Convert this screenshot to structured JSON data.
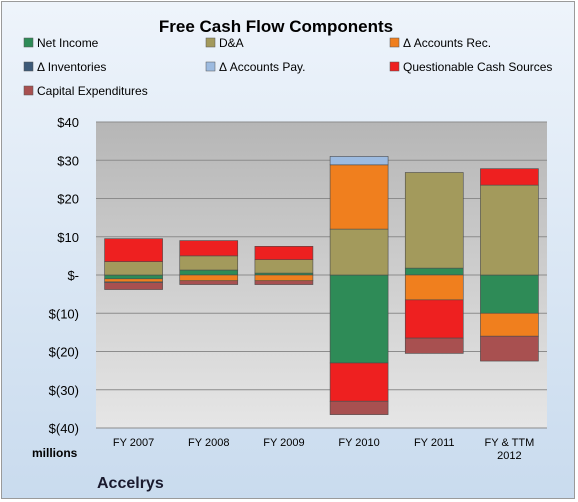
{
  "chart_data": {
    "type": "bar",
    "stacked": true,
    "title": "Free Cash Flow Components",
    "ylabel": "millions",
    "brand": "Accelrys",
    "ylim": [
      -40,
      40
    ],
    "yticks": [
      40,
      30,
      20,
      10,
      0,
      -10,
      -20,
      -30,
      -40
    ],
    "ytick_labels": [
      "$40",
      "$30",
      "$20",
      "$10",
      "$-",
      "$(10)",
      "$(20)",
      "$(30)",
      "$(40)"
    ],
    "categories": [
      [
        "FY 2007"
      ],
      [
        "FY 2008"
      ],
      [
        "FY 2009"
      ],
      [
        "FY 2010"
      ],
      [
        "FY 2011"
      ],
      [
        "FY & TTM",
        "2012"
      ]
    ],
    "series": [
      {
        "name": "Net Income",
        "color": "#2e8b57",
        "values": [
          -1.0,
          1.3,
          0.5,
          -23.0,
          1.8,
          -10.0
        ]
      },
      {
        "name": "D&A",
        "color": "#a39a5c",
        "values": [
          3.5,
          3.7,
          3.5,
          12.0,
          25.0,
          23.5
        ]
      },
      {
        "name": "Δ Accounts Rec.",
        "color": "#f07f1e",
        "values": [
          -0.8,
          -1.5,
          -1.5,
          16.8,
          -6.5,
          -6.0
        ]
      },
      {
        "name": "Δ Inventories",
        "color": "#3d5a78",
        "values": [
          0,
          0,
          0,
          0,
          0,
          0
        ]
      },
      {
        "name": "Δ Accounts Pay.",
        "color": "#9dbbe0",
        "values": [
          -0.2,
          0,
          0,
          2.2,
          0,
          0
        ]
      },
      {
        "name": "Questionable Cash Sources",
        "color": "#ee2020",
        "values": [
          6.0,
          4.0,
          3.5,
          -10.0,
          -10.0,
          4.3
        ]
      },
      {
        "name": "Capital Expenditures",
        "color": "#a85050",
        "values": [
          -1.8,
          -1.0,
          -1.0,
          -3.5,
          -4.0,
          -6.5
        ]
      }
    ]
  }
}
